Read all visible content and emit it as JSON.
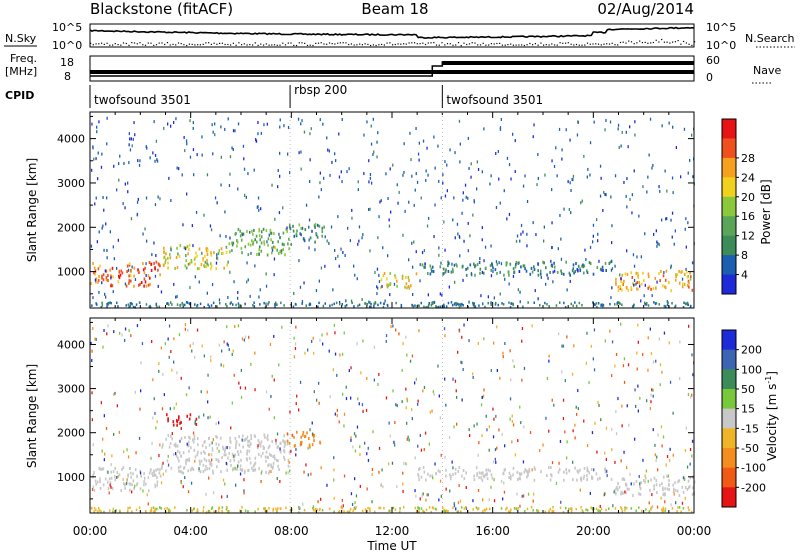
{
  "header": {
    "station": "Blackstone (fitACF)",
    "beam": "Beam 18",
    "date": "02/Aug/2014"
  },
  "noise_panel": {
    "left_label": "N.Sky",
    "right_label": "N.Search",
    "left_ticks": [
      "10^5",
      "10^0"
    ],
    "right_ticks": [
      "10^5",
      "10^0"
    ]
  },
  "freq_panel": {
    "left_label_line1": "Freq.",
    "left_label_line2": "[MHz]",
    "left_ticks": [
      "18",
      "8"
    ],
    "right_label": "Nave",
    "right_ticks": [
      "60",
      "0"
    ]
  },
  "cpid": {
    "label": "CPID",
    "segments": [
      {
        "name": "twofsound 3501",
        "start_hour": 0
      },
      {
        "name": "rbsp 200",
        "start_hour": 7.95
      },
      {
        "name": "twofsound 3501",
        "start_hour": 14
      }
    ]
  },
  "axes": {
    "x_label": "Time UT",
    "x_ticks": [
      "00:00",
      "04:00",
      "08:00",
      "12:00",
      "16:00",
      "20:00",
      "00:00"
    ],
    "y_label": "Slant Range [km]",
    "y_ticks": [
      "1000",
      "2000",
      "3000",
      "4000"
    ],
    "y_tick_values": [
      1000,
      2000,
      3000,
      4000
    ]
  },
  "colorbars": {
    "power": {
      "label": "Power [dB]",
      "ticks": [
        "4",
        "8",
        "12",
        "16",
        "20",
        "24",
        "28"
      ],
      "colors": [
        "#1e2ad8",
        "#1a5fb0",
        "#3c8c5a",
        "#5aa55a",
        "#8cc83c",
        "#f0d21e",
        "#f5a01e",
        "#f0501e",
        "#e61414"
      ]
    },
    "velocity": {
      "label": "Velocity [m s^-1]",
      "ticks": [
        "200",
        "100",
        "50",
        "15",
        "-15",
        "-50",
        "-100",
        "-200"
      ],
      "colors": [
        "#1e2ad8",
        "#3c64b4",
        "#3c8c5a",
        "#78c83c",
        "#c8c8c8",
        "#f0b428",
        "#f58c1e",
        "#f05a14",
        "#e61414"
      ]
    }
  },
  "chart_data": [
    {
      "type": "heatmap",
      "title": "Power",
      "xlabel": "Time UT",
      "ylabel": "Slant Range [km]",
      "xlim": [
        0,
        24
      ],
      "ylim": [
        180,
        4600
      ],
      "colorbar_label": "Power [dB]",
      "colorbar_range": [
        0,
        32
      ],
      "echo_bands": [
        {
          "t0": 0,
          "t1": 2.8,
          "r0": 700,
          "r1": 1250,
          "power": 26
        },
        {
          "t0": 2.8,
          "t1": 5.5,
          "r0": 1100,
          "r1": 1650,
          "power": 18
        },
        {
          "t0": 5.5,
          "t1": 7.9,
          "r0": 1400,
          "r1": 2000,
          "power": 13
        },
        {
          "t0": 7.9,
          "t1": 9.3,
          "r0": 1700,
          "r1": 2100,
          "power": 10
        },
        {
          "t0": 11.5,
          "t1": 13.0,
          "r0": 650,
          "r1": 1000,
          "power": 20
        },
        {
          "t0": 13.0,
          "t1": 20.8,
          "r0": 950,
          "r1": 1250,
          "power": 8
        },
        {
          "t0": 20.8,
          "t1": 24,
          "r0": 600,
          "r1": 1050,
          "power": 22
        }
      ]
    },
    {
      "type": "heatmap",
      "title": "Velocity",
      "xlabel": "Time UT",
      "ylabel": "Slant Range [km]",
      "xlim": [
        0,
        24
      ],
      "ylim": [
        180,
        4600
      ],
      "colorbar_label": "Velocity [m s^-1]",
      "colorbar_range": [
        -200,
        200
      ],
      "echo_bands": [
        {
          "t0": 0,
          "t1": 2.8,
          "r0": 700,
          "r1": 1250,
          "velocity": 0
        },
        {
          "t0": 2.8,
          "t1": 7.9,
          "r0": 1100,
          "r1": 2000,
          "velocity": 0
        },
        {
          "t0": 3.0,
          "t1": 4.2,
          "r0": 2200,
          "r1": 2450,
          "velocity": -200
        },
        {
          "t0": 7.8,
          "t1": 9.2,
          "r0": 1700,
          "r1": 2050,
          "velocity": -100
        },
        {
          "t0": 13.0,
          "t1": 20.8,
          "r0": 950,
          "r1": 1250,
          "velocity": 0
        },
        {
          "t0": 20.8,
          "t1": 24,
          "r0": 600,
          "r1": 1050,
          "velocity": 0
        }
      ]
    }
  ]
}
